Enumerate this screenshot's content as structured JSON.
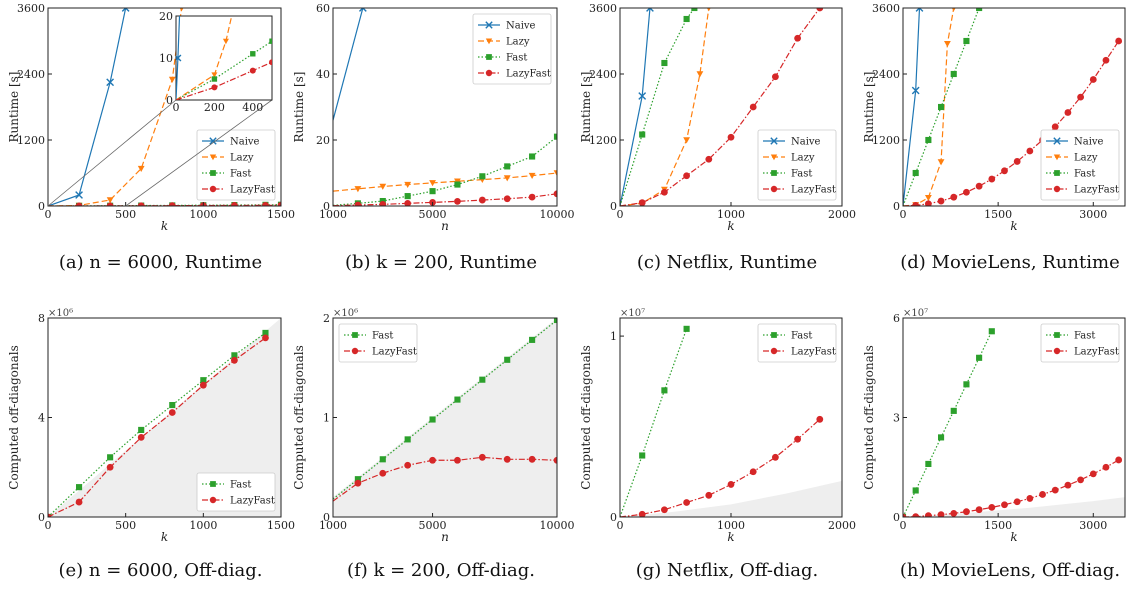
{
  "colors": {
    "Naive": "#1f77b4",
    "Lazy": "#ff7f0e",
    "Fast": "#2ca02c",
    "LazyFast": "#d62728",
    "region": "#eeeeee"
  },
  "chart_data": [
    {
      "id": "a",
      "type": "line",
      "caption": "(a) n = 6000, Runtime",
      "xlabel": "k",
      "ylabel": "Runtime [s]",
      "xlim": [
        0,
        1500
      ],
      "ylim": [
        0,
        3600
      ],
      "xticks": [
        "0",
        "500",
        "1000",
        "1500"
      ],
      "yticks": [
        "0",
        "1200",
        "2400",
        "3600"
      ],
      "legend": "bottom-right",
      "series": [
        {
          "name": "Naive",
          "x": [
            0,
            200,
            400,
            500
          ],
          "y": [
            0,
            200,
            2250,
            3600
          ]
        },
        {
          "name": "Lazy",
          "x": [
            0,
            200,
            400,
            600,
            800,
            860
          ],
          "y": [
            0,
            10,
            110,
            680,
            2300,
            3600
          ]
        },
        {
          "name": "Fast",
          "x": [
            0,
            200,
            400,
            600,
            800,
            1000,
            1200,
            1400,
            1500
          ],
          "y": [
            0,
            2,
            5,
            8,
            11,
            14,
            17,
            21,
            23
          ]
        },
        {
          "name": "LazyFast",
          "x": [
            0,
            200,
            400,
            600,
            800,
            1000,
            1200,
            1400,
            1500
          ],
          "y": [
            0,
            1,
            2,
            4,
            6,
            8,
            10,
            12,
            14
          ]
        }
      ],
      "inset": {
        "xlim": [
          0,
          500
        ],
        "ylim": [
          0,
          20
        ],
        "xticks": [
          "0",
          "200",
          "400"
        ],
        "yticks": [
          "0",
          "10",
          "20"
        ],
        "series": [
          {
            "name": "Naive",
            "x": [
              0,
              10,
              20
            ],
            "y": [
              0,
              10,
              22
            ]
          },
          {
            "name": "Lazy",
            "x": [
              0,
              200,
              260,
              300
            ],
            "y": [
              0,
              6,
              14,
              22
            ]
          },
          {
            "name": "Fast",
            "x": [
              0,
              200,
              400,
              500
            ],
            "y": [
              0,
              5,
              11,
              14
            ]
          },
          {
            "name": "LazyFast",
            "x": [
              0,
              200,
              400,
              500
            ],
            "y": [
              0,
              3,
              7,
              9
            ]
          }
        ]
      }
    },
    {
      "id": "b",
      "type": "line",
      "caption": "(b) k = 200, Runtime",
      "xlabel": "n",
      "ylabel": "Runtime [s]",
      "xlim": [
        1000,
        10000
      ],
      "ylim": [
        0,
        60
      ],
      "xticks": [
        "1000",
        "5000",
        "10000"
      ],
      "yticks": [
        "0",
        "20",
        "40",
        "60"
      ],
      "legend": "top-right",
      "series": [
        {
          "name": "Naive",
          "x": [
            1000,
            2200
          ],
          "y": [
            26,
            60
          ]
        },
        {
          "name": "Lazy",
          "x": [
            1000,
            2000,
            3000,
            4000,
            5000,
            6000,
            7000,
            8000,
            9000,
            10000
          ],
          "y": [
            4.5,
            5.2,
            5.9,
            6.5,
            7,
            7.5,
            8,
            8.5,
            9.2,
            10
          ]
        },
        {
          "name": "Fast",
          "x": [
            1000,
            2000,
            3000,
            4000,
            5000,
            6000,
            7000,
            8000,
            9000,
            10000
          ],
          "y": [
            0.2,
            0.8,
            1.5,
            3,
            4.5,
            6.5,
            9,
            12,
            15,
            21
          ]
        },
        {
          "name": "LazyFast",
          "x": [
            1000,
            2000,
            3000,
            4000,
            5000,
            6000,
            7000,
            8000,
            9000,
            10000
          ],
          "y": [
            0.1,
            0.3,
            0.5,
            0.8,
            1.1,
            1.4,
            1.8,
            2.2,
            2.7,
            3.7
          ]
        }
      ]
    },
    {
      "id": "c",
      "type": "line",
      "caption": "(c) Netflix, Runtime",
      "xlabel": "k",
      "ylabel": "Runtime [s]",
      "xlim": [
        0,
        2000
      ],
      "ylim": [
        0,
        3600
      ],
      "xticks": [
        "0",
        "1000",
        "2000"
      ],
      "yticks": [
        "0",
        "1200",
        "2400",
        "3600"
      ],
      "legend": "bottom-right",
      "series": [
        {
          "name": "Naive",
          "x": [
            0,
            200,
            270
          ],
          "y": [
            0,
            2000,
            3600
          ]
        },
        {
          "name": "Lazy",
          "x": [
            0,
            200,
            400,
            600,
            720,
            800
          ],
          "y": [
            0,
            50,
            300,
            1200,
            2400,
            3600
          ]
        },
        {
          "name": "Fast",
          "x": [
            0,
            200,
            400,
            600,
            670
          ],
          "y": [
            0,
            1300,
            2600,
            3400,
            3600
          ]
        },
        {
          "name": "LazyFast",
          "x": [
            0,
            200,
            400,
            600,
            800,
            1000,
            1200,
            1400,
            1600,
            1800
          ],
          "y": [
            0,
            60,
            250,
            550,
            850,
            1250,
            1800,
            2350,
            3050,
            3600
          ]
        }
      ]
    },
    {
      "id": "d",
      "type": "line",
      "caption": "(d) MovieLens, Runtime",
      "xlabel": "k",
      "ylabel": "Runtime [s]",
      "xlim": [
        0,
        3500
      ],
      "ylim": [
        0,
        3600
      ],
      "xticks": [
        "0",
        "1500",
        "3000"
      ],
      "yticks": [
        "0",
        "1200",
        "2400",
        "3600"
      ],
      "legend": "bottom-right",
      "series": [
        {
          "name": "Naive",
          "x": [
            0,
            200,
            260
          ],
          "y": [
            0,
            2100,
            3600
          ]
        },
        {
          "name": "Lazy",
          "x": [
            0,
            200,
            400,
            600,
            700,
            800
          ],
          "y": [
            0,
            20,
            150,
            800,
            2950,
            3600
          ]
        },
        {
          "name": "Fast",
          "x": [
            0,
            200,
            400,
            600,
            800,
            1000,
            1200
          ],
          "y": [
            0,
            600,
            1200,
            1800,
            2400,
            3000,
            3600
          ]
        },
        {
          "name": "LazyFast",
          "x": [
            0,
            200,
            400,
            600,
            800,
            1000,
            1200,
            1400,
            1600,
            1800,
            2000,
            2200,
            2400,
            2600,
            2800,
            3000,
            3200,
            3400
          ],
          "y": [
            0,
            10,
            40,
            90,
            160,
            250,
            360,
            490,
            640,
            810,
            1000,
            1200,
            1440,
            1700,
            1980,
            2300,
            2650,
            3000
          ]
        }
      ]
    },
    {
      "id": "e",
      "type": "line",
      "caption": "(e) n = 6000, Off-diag.",
      "xlabel": "k",
      "ylabel": "Computed off-diagonals",
      "multiplier": "×10⁶",
      "xlim": [
        0,
        1500
      ],
      "ylim": [
        0,
        8
      ],
      "xticks": [
        "0",
        "500",
        "1000",
        "1500"
      ],
      "yticks": [
        "0",
        "4",
        "8"
      ],
      "legend": "bottom-right",
      "shaded": {
        "x": [
          0,
          300,
          600,
          900,
          1200,
          1500
        ],
        "upper": [
          0,
          1.6,
          3.2,
          4.8,
          6.4,
          8.0
        ]
      },
      "series": [
        {
          "name": "Fast",
          "x": [
            0,
            200,
            400,
            600,
            800,
            1000,
            1200,
            1400
          ],
          "y": [
            0,
            1.2,
            2.4,
            3.5,
            4.5,
            5.5,
            6.5,
            7.4
          ]
        },
        {
          "name": "LazyFast",
          "x": [
            0,
            200,
            400,
            600,
            800,
            1000,
            1200,
            1400
          ],
          "y": [
            0,
            0.6,
            2.0,
            3.2,
            4.2,
            5.3,
            6.3,
            7.2
          ]
        }
      ]
    },
    {
      "id": "f",
      "type": "line",
      "caption": "(f) k = 200, Off-diag.",
      "xlabel": "n",
      "ylabel": "Computed off-diagonals",
      "multiplier": "×10⁶",
      "xlim": [
        1000,
        10000
      ],
      "ylim": [
        0,
        2
      ],
      "xticks": [
        "1000",
        "5000",
        "10000"
      ],
      "yticks": [
        "0",
        "1",
        "2"
      ],
      "legend": "top-left",
      "shaded": {
        "x": [
          1000,
          4000,
          7000,
          10000
        ],
        "upper": [
          0.2,
          0.8,
          1.4,
          2.0
        ]
      },
      "series": [
        {
          "name": "Fast",
          "x": [
            1000,
            2000,
            3000,
            4000,
            5000,
            6000,
            7000,
            8000,
            9000,
            10000
          ],
          "y": [
            0.18,
            0.38,
            0.58,
            0.78,
            0.98,
            1.18,
            1.38,
            1.58,
            1.78,
            1.98
          ]
        },
        {
          "name": "LazyFast",
          "x": [
            1000,
            2000,
            3000,
            4000,
            5000,
            6000,
            7000,
            8000,
            9000,
            10000
          ],
          "y": [
            0.16,
            0.34,
            0.44,
            0.52,
            0.57,
            0.57,
            0.6,
            0.58,
            0.58,
            0.57
          ]
        }
      ]
    },
    {
      "id": "g",
      "type": "line",
      "caption": "(g) Netflix, Off-diag.",
      "xlabel": "k",
      "ylabel": "Computed off-diagonals",
      "multiplier": "×10⁷",
      "xlim": [
        0,
        2000
      ],
      "ylim": [
        0,
        1.1
      ],
      "xticks": [
        "0",
        "1000",
        "2000"
      ],
      "yticks": [
        "0",
        "1"
      ],
      "legend": "top-right",
      "shaded": {
        "x": [
          0,
          500,
          1000,
          1500,
          2000
        ],
        "upper": [
          0,
          0.03,
          0.07,
          0.13,
          0.2
        ]
      },
      "series": [
        {
          "name": "Fast",
          "x": [
            0,
            200,
            400,
            600
          ],
          "y": [
            0,
            0.34,
            0.7,
            1.04
          ]
        },
        {
          "name": "LazyFast",
          "x": [
            0,
            200,
            400,
            600,
            800,
            1000,
            1200,
            1400,
            1600,
            1800
          ],
          "y": [
            0,
            0.015,
            0.04,
            0.08,
            0.12,
            0.18,
            0.25,
            0.33,
            0.43,
            0.54
          ]
        }
      ]
    },
    {
      "id": "h",
      "type": "line",
      "caption": "(h) MovieLens, Off-diag.",
      "xlabel": "k",
      "ylabel": "Computed off-diagonals",
      "multiplier": "×10⁷",
      "xlim": [
        0,
        3500
      ],
      "ylim": [
        0,
        6
      ],
      "xticks": [
        "0",
        "1500",
        "3000"
      ],
      "yticks": [
        "0",
        "3",
        "6"
      ],
      "legend": "top-right",
      "shaded": {
        "x": [
          0,
          1000,
          2000,
          3000,
          3500
        ],
        "upper": [
          0,
          0.12,
          0.28,
          0.48,
          0.6
        ]
      },
      "series": [
        {
          "name": "Fast",
          "x": [
            0,
            200,
            400,
            600,
            800,
            1000,
            1200,
            1400
          ],
          "y": [
            0,
            0.8,
            1.6,
            2.4,
            3.2,
            4.0,
            4.8,
            5.6
          ]
        },
        {
          "name": "LazyFast",
          "x": [
            0,
            200,
            400,
            600,
            800,
            1000,
            1200,
            1400,
            1600,
            1800,
            2000,
            2200,
            2400,
            2600,
            2800,
            3000,
            3200,
            3400
          ],
          "y": [
            0,
            0.01,
            0.04,
            0.07,
            0.11,
            0.16,
            0.22,
            0.29,
            0.37,
            0.46,
            0.56,
            0.68,
            0.81,
            0.96,
            1.12,
            1.3,
            1.5,
            1.72
          ]
        }
      ]
    }
  ]
}
